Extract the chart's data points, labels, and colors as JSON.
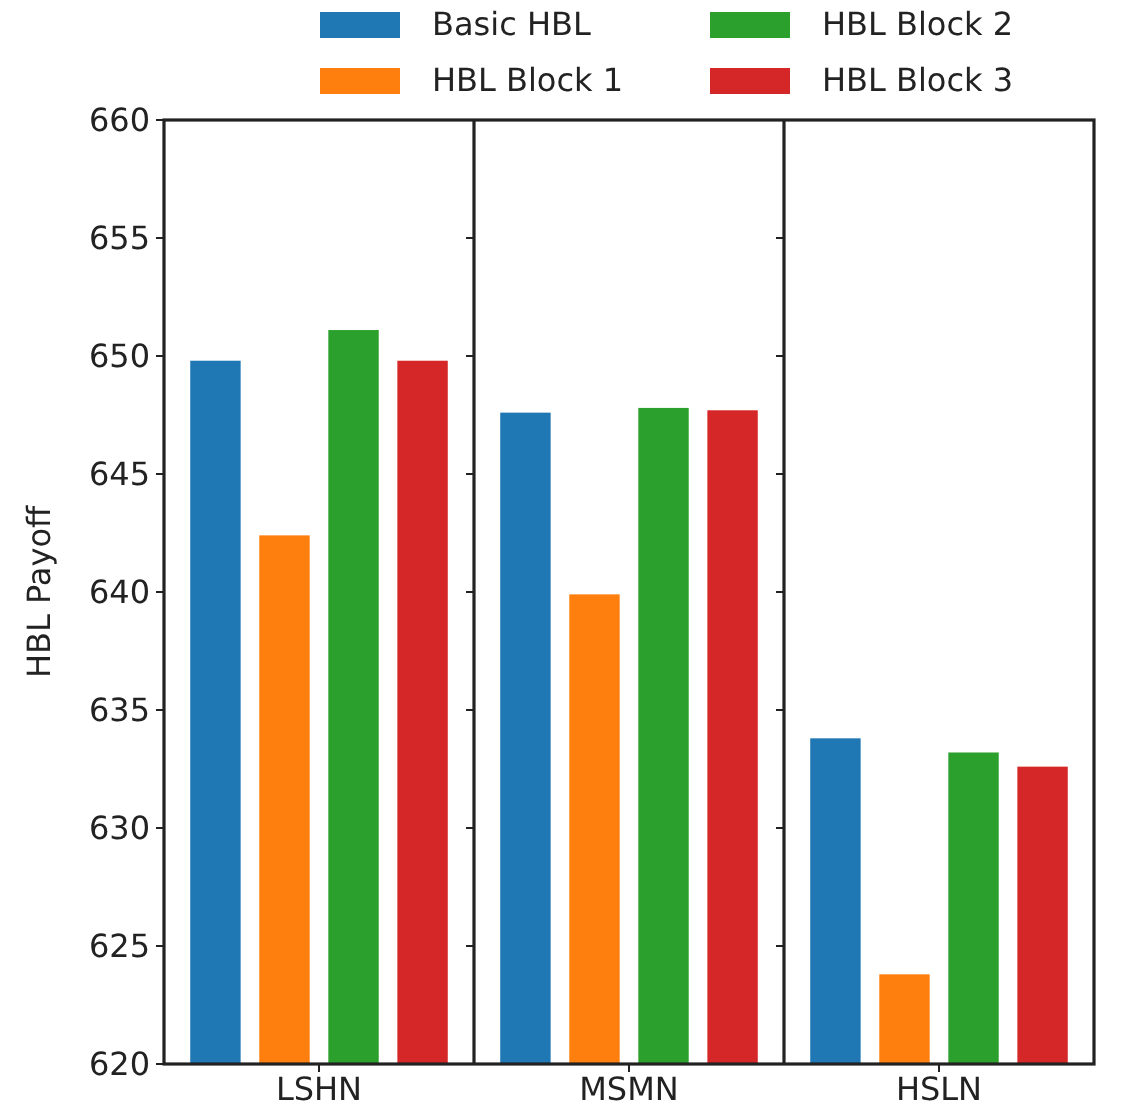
{
  "chart_data": {
    "type": "bar",
    "categories": [
      "LSHN",
      "MSMN",
      "HSLN"
    ],
    "ylabel": "HBL Payoff",
    "ylim": [
      620,
      660
    ],
    "yticks": [
      620,
      625,
      630,
      635,
      640,
      645,
      650,
      655,
      660
    ],
    "legend": "top",
    "series": [
      {
        "name": "Basic HBL",
        "color": "#1f77b4",
        "values": [
          649.8,
          647.6,
          633.8
        ]
      },
      {
        "name": "HBL Block 1",
        "color": "#ff7f0e",
        "values": [
          642.4,
          639.9,
          623.8
        ]
      },
      {
        "name": "HBL Block 2",
        "color": "#2ca02c",
        "values": [
          651.1,
          647.8,
          633.2
        ]
      },
      {
        "name": "HBL Block 3",
        "color": "#d62728",
        "values": [
          649.8,
          647.7,
          632.6
        ]
      }
    ]
  }
}
